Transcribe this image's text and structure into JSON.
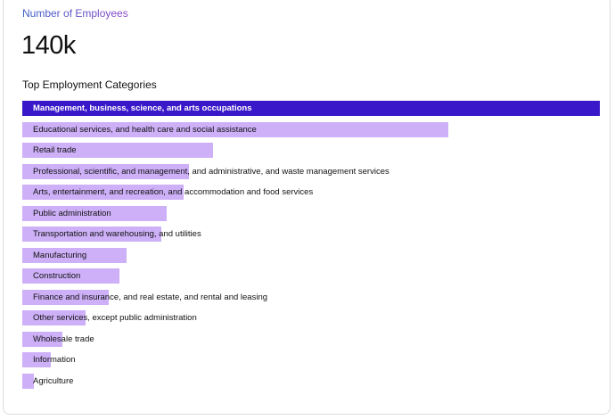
{
  "card": {
    "metric_label": "Number of Employees",
    "metric_value": "140k"
  },
  "colors": {
    "highlight_bar": "#3818c8",
    "bar": "#cdb0f7",
    "label_gradient_start": "#3a5fc8",
    "label_gradient_end": "#8b47c9"
  },
  "chart_data": {
    "type": "bar",
    "orientation": "horizontal",
    "title": "Top Employment Categories",
    "highlight_index": 0,
    "categories": [
      "Management, business, science, and arts occupations",
      "Educational services, and health care and social assistance",
      "Retail trade",
      "Professional, scientific, and management, and administrative, and waste management services",
      "Arts, entertainment, and recreation, and accommodation and food services",
      "Public administration",
      "Transportation and warehousing, and utilities",
      "Manufacturing",
      "Construction",
      "Finance and insurance, and real estate, and rental and leasing",
      "Other services, except public administration",
      "Wholesale trade",
      "Information",
      "Agriculture"
    ],
    "values": [
      1.0,
      0.738,
      0.33,
      0.288,
      0.28,
      0.25,
      0.24,
      0.18,
      0.168,
      0.15,
      0.11,
      0.07,
      0.05,
      0.02
    ],
    "value_scale": "relative to largest category"
  }
}
